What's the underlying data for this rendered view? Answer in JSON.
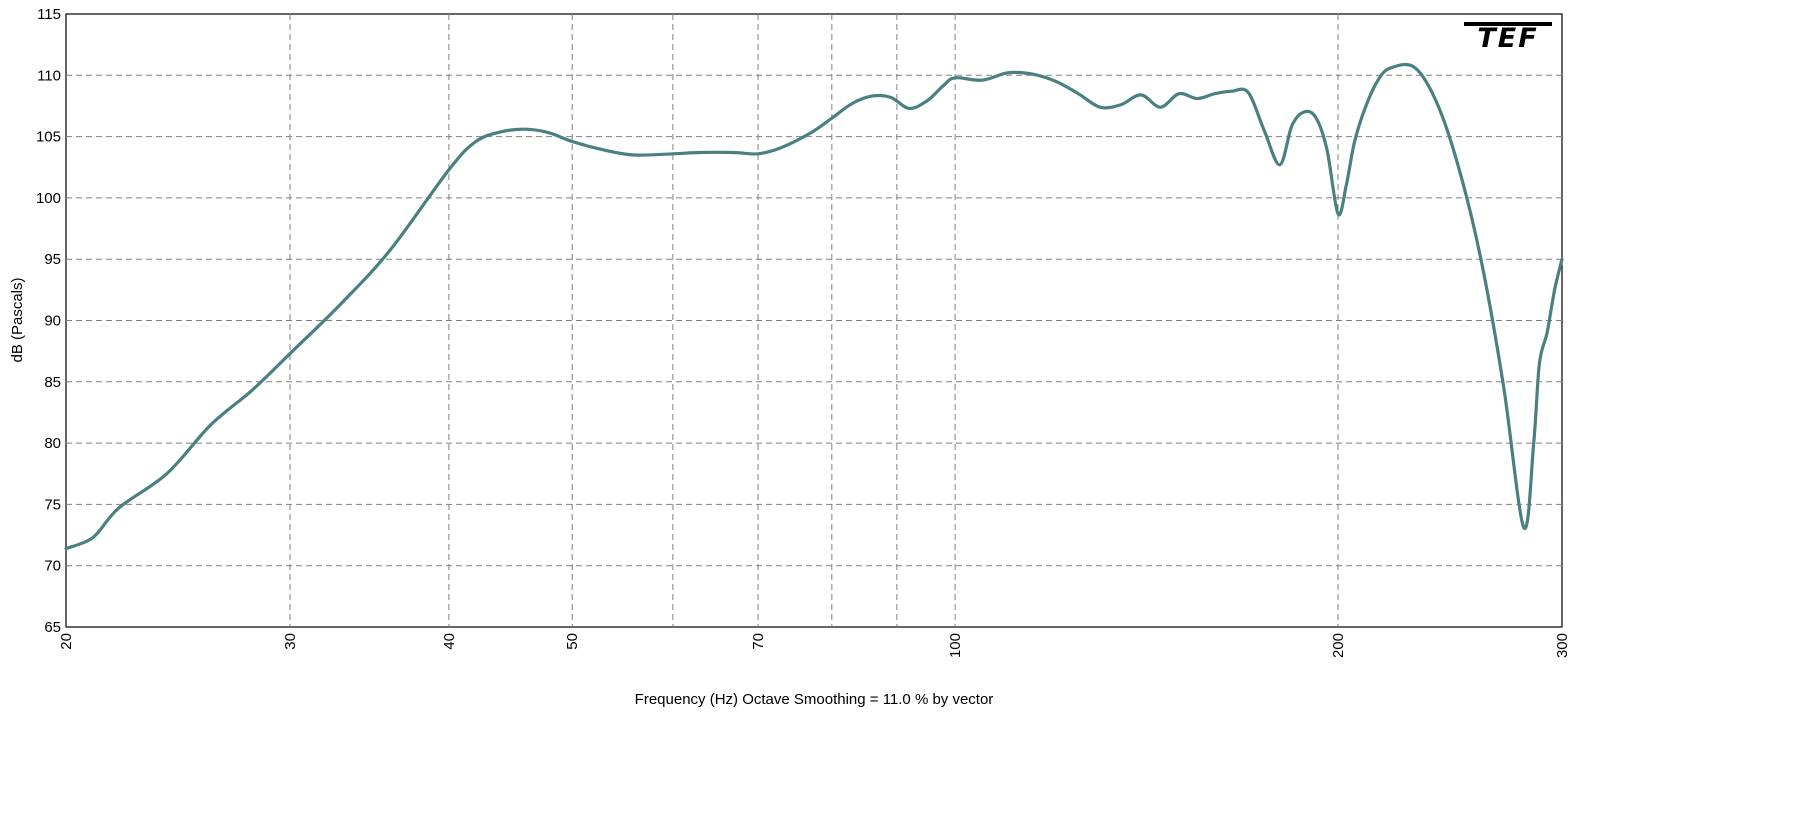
{
  "logo_text": "TEF",
  "colors": {
    "curve": "#4a8080",
    "grid": "#808080",
    "background": "#ffffff",
    "logo": "#000000"
  },
  "chart_data": {
    "type": "line",
    "title": "",
    "xlabel": "Frequency (Hz) Octave Smoothing = 11.0 % by vector",
    "ylabel": "dB (Pascals)",
    "xscale": "log",
    "xlim": [
      20,
      300
    ],
    "ylim": [
      65,
      115
    ],
    "grid": true,
    "legend": "none",
    "x_ticks": [
      {
        "value": 20,
        "label": "20"
      },
      {
        "value": 30,
        "label": "30"
      },
      {
        "value": 40,
        "label": "40"
      },
      {
        "value": 50,
        "label": "50"
      },
      {
        "value": 70,
        "label": "70"
      },
      {
        "value": 100,
        "label": "100"
      },
      {
        "value": 200,
        "label": "200"
      },
      {
        "value": 300,
        "label": "300"
      }
    ],
    "x_minor_grid": [
      60,
      80,
      90
    ],
    "y_ticks": [
      65,
      70,
      75,
      80,
      85,
      90,
      95,
      100,
      105,
      110,
      115
    ],
    "series": [
      {
        "x": [
          20,
          21,
          22,
          24,
          26,
          28,
          30,
          33,
          36,
          40,
          42,
          44,
          46,
          48,
          50,
          53,
          56,
          60,
          63,
          67,
          70,
          73,
          77,
          80,
          83,
          86,
          89,
          92,
          95,
          98,
          100,
          105,
          110,
          115,
          120,
          125,
          130,
          135,
          140,
          145,
          150,
          155,
          160,
          165,
          170,
          175,
          180,
          184,
          188,
          192,
          196,
          200,
          203,
          206,
          210,
          215,
          220,
          230,
          240,
          250,
          260,
          270,
          280,
          285,
          288,
          292,
          296,
          300
        ],
        "y": [
          71.4,
          72.3,
          74.7,
          77.5,
          81.5,
          84.3,
          87.3,
          91.5,
          95.8,
          102.3,
          104.6,
          105.4,
          105.6,
          105.3,
          104.6,
          103.9,
          103.5,
          103.6,
          103.7,
          103.7,
          103.6,
          104.1,
          105.3,
          106.5,
          107.7,
          108.3,
          108.2,
          107.3,
          107.9,
          109.2,
          109.8,
          109.6,
          110.2,
          110.1,
          109.5,
          108.5,
          107.4,
          107.6,
          108.4,
          107.4,
          108.5,
          108.1,
          108.5,
          108.7,
          108.6,
          105.5,
          102.7,
          105.9,
          107.0,
          106.6,
          104.0,
          98.7,
          101.0,
          104.5,
          107.3,
          109.6,
          110.6,
          110.6,
          107.4,
          101.7,
          94.2,
          84.5,
          73.1,
          80.0,
          86.5,
          89.0,
          92.5,
          95.0
        ]
      }
    ]
  }
}
